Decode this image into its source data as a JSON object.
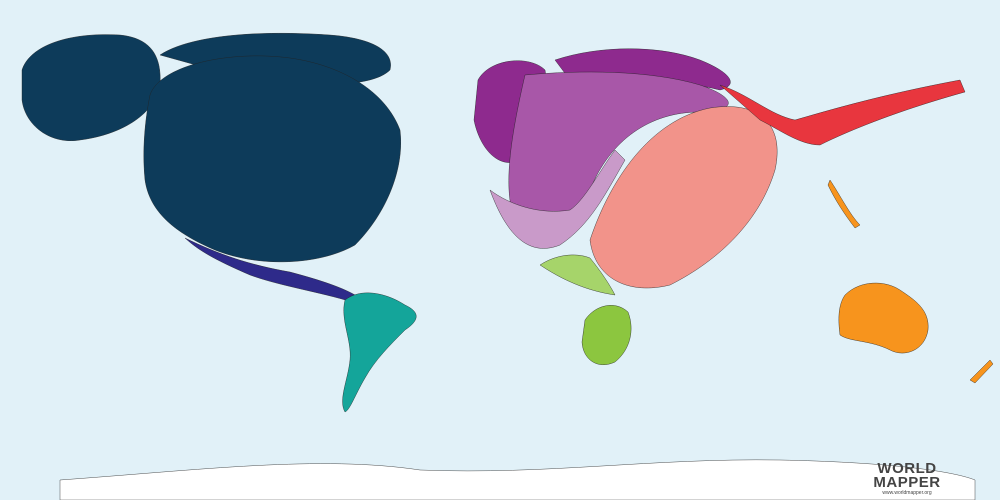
{
  "logo": {
    "line1": "WORLD",
    "line2": "MAPPER",
    "url": "www.worldmapper.org"
  },
  "colors": {
    "ocean": "#e1f1f8",
    "north_america": "#0d3b5a",
    "central_america": "#2e2a8a",
    "south_america": "#14a59a",
    "western_europe": "#8e2a8e",
    "eastern_europe": "#a857a8",
    "middle_east": "#c99ac9",
    "southern_asia": "#f2938a",
    "asia_pacific": "#e8363e",
    "north_africa": "#a6d46a",
    "southern_africa": "#8cc63f",
    "oceania": "#f7941d",
    "antarctica": "#ffffff"
  }
}
